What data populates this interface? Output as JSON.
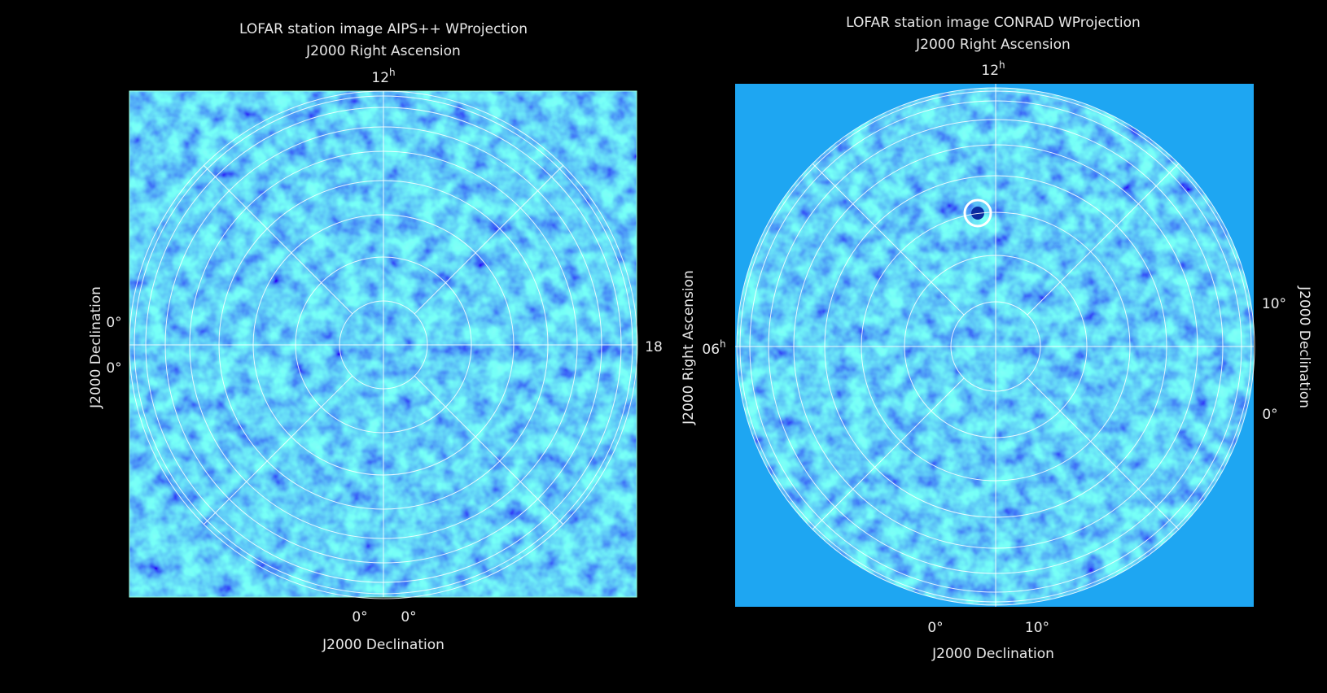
{
  "panels": [
    {
      "title": "LOFAR station image AIPS++ WProjection",
      "subtitle": "J2000 Right Ascension",
      "top_tick": {
        "number": "12",
        "unit": "h"
      },
      "left_label": "J2000 Declination",
      "left_ticks": [
        "0°",
        "0°"
      ],
      "right_tick": "18",
      "bottom_ticks": [
        "0°",
        "0°"
      ],
      "bottom_label": "J2000 Declination"
    },
    {
      "title": "LOFAR station image CONRAD WProjection",
      "subtitle": "J2000 Right Ascension",
      "top_tick": {
        "number": "12",
        "unit": "h"
      },
      "left_label": "J2000 Right Ascension",
      "left_tick": {
        "number": "06",
        "unit": "h"
      },
      "right_label": "J2000 Declination",
      "right_ticks": [
        "10°",
        "0°"
      ],
      "bottom_ticks": [
        "0°",
        "10°"
      ],
      "bottom_label": "J2000 Declination"
    }
  ]
}
